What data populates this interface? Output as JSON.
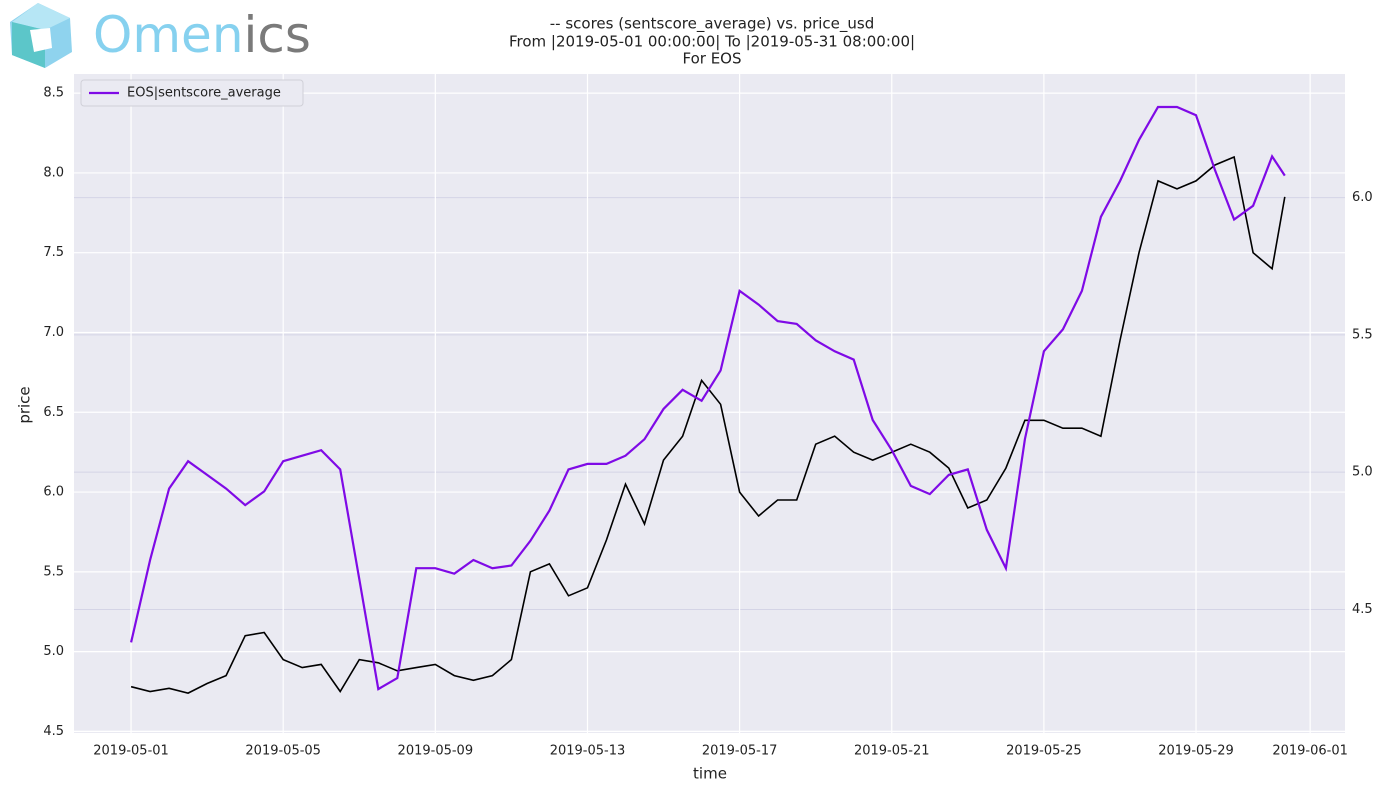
{
  "brand": [
    "Omen",
    "ics"
  ],
  "chart_data": {
    "type": "line",
    "title": [
      "-- scores (sentscore_average) vs. price_usd",
      "From |2019-05-01 00:00:00| To |2019-05-31 08:00:00|",
      "For EOS"
    ],
    "xlabel": "time",
    "ylabel": "price",
    "x": [
      "2019-05-01 00:00",
      "2019-05-01 12:00",
      "2019-05-02 00:00",
      "2019-05-02 12:00",
      "2019-05-03 00:00",
      "2019-05-03 12:00",
      "2019-05-04 00:00",
      "2019-05-04 12:00",
      "2019-05-05 00:00",
      "2019-05-05 12:00",
      "2019-05-06 00:00",
      "2019-05-06 12:00",
      "2019-05-07 00:00",
      "2019-05-07 12:00",
      "2019-05-08 00:00",
      "2019-05-08 12:00",
      "2019-05-09 00:00",
      "2019-05-09 12:00",
      "2019-05-10 00:00",
      "2019-05-10 12:00",
      "2019-05-11 00:00",
      "2019-05-11 12:00",
      "2019-05-12 00:00",
      "2019-05-12 12:00",
      "2019-05-13 00:00",
      "2019-05-13 12:00",
      "2019-05-14 00:00",
      "2019-05-14 12:00",
      "2019-05-15 00:00",
      "2019-05-15 12:00",
      "2019-05-16 00:00",
      "2019-05-16 12:00",
      "2019-05-17 00:00",
      "2019-05-17 12:00",
      "2019-05-18 00:00",
      "2019-05-18 12:00",
      "2019-05-19 00:00",
      "2019-05-19 12:00",
      "2019-05-20 00:00",
      "2019-05-20 12:00",
      "2019-05-21 00:00",
      "2019-05-21 12:00",
      "2019-05-22 00:00",
      "2019-05-22 12:00",
      "2019-05-23 00:00",
      "2019-05-23 12:00",
      "2019-05-24 00:00",
      "2019-05-24 12:00",
      "2019-05-25 00:00",
      "2019-05-25 12:00",
      "2019-05-26 00:00",
      "2019-05-26 12:00",
      "2019-05-27 00:00",
      "2019-05-27 12:00",
      "2019-05-28 00:00",
      "2019-05-28 12:00",
      "2019-05-29 00:00",
      "2019-05-29 12:00",
      "2019-05-30 00:00",
      "2019-05-30 12:00",
      "2019-05-31 00:00",
      "2019-05-31 08:00"
    ],
    "series": [
      {
        "color": "#000000",
        "values": [
          4.78,
          4.75,
          4.77,
          4.74,
          4.8,
          4.85,
          5.1,
          5.12,
          4.95,
          4.9,
          4.92,
          4.75,
          4.95,
          4.93,
          4.88,
          4.9,
          4.92,
          4.85,
          4.82,
          4.85,
          4.95,
          5.5,
          5.55,
          5.35,
          5.4,
          5.7,
          6.05,
          5.8,
          6.2,
          6.35,
          6.7,
          6.55,
          6.0,
          5.85,
          5.95,
          5.95,
          6.3,
          6.35,
          6.25,
          6.2,
          6.25,
          6.3,
          6.25,
          6.15,
          5.9,
          5.95,
          6.15,
          6.45,
          6.45,
          6.4,
          6.4,
          6.35,
          6.95,
          7.5,
          7.95,
          7.9,
          7.95,
          8.05,
          8.1,
          7.5,
          7.4,
          7.85
        ]
      },
      {
        "name": "EOS|sentscore_average",
        "color": "#7f0ae6",
        "axis": "y2",
        "values": [
          4.38,
          4.68,
          4.94,
          5.04,
          4.99,
          4.94,
          4.88,
          4.93,
          5.04,
          5.06,
          5.08,
          5.01,
          4.61,
          4.21,
          4.25,
          4.65,
          4.65,
          4.63,
          4.68,
          4.65,
          4.66,
          4.75,
          4.86,
          5.01,
          5.03,
          5.03,
          5.06,
          5.12,
          5.23,
          5.3,
          5.26,
          5.37,
          5.66,
          5.61,
          5.55,
          5.54,
          5.48,
          5.44,
          5.41,
          5.19,
          5.08,
          4.95,
          4.92,
          4.99,
          5.01,
          4.79,
          4.65,
          5.12,
          5.44,
          5.52,
          5.66,
          5.93,
          6.06,
          6.21,
          6.33,
          6.33,
          6.3,
          6.1,
          5.92,
          5.97,
          6.15,
          6.08
        ]
      }
    ],
    "xlim": [
      "2019-04-29 12:00",
      "2019-06-01 22:00"
    ],
    "xticks": [
      "2019-05-01",
      "2019-05-05",
      "2019-05-09",
      "2019-05-13",
      "2019-05-17",
      "2019-05-21",
      "2019-05-25",
      "2019-05-29",
      "2019-06-01"
    ],
    "ylim": [
      4.49,
      8.62
    ],
    "yticks": [
      4.5,
      {
        "value": 5,
        "label": "5.0"
      },
      5.5,
      {
        "value": 6,
        "label": "6.0"
      },
      6.5,
      {
        "value": 7,
        "label": "7.0"
      },
      7.5,
      {
        "value": 8,
        "label": "8.0"
      },
      8.5
    ],
    "y2lim": [
      4.05,
      6.45
    ],
    "y2ticks": [
      4.5,
      {
        "value": 5,
        "label": "5.0"
      },
      5.5,
      {
        "value": 6,
        "label": "6.0"
      }
    ],
    "grid": true,
    "legend": "upper left",
    "background": "#eaeaf2"
  }
}
